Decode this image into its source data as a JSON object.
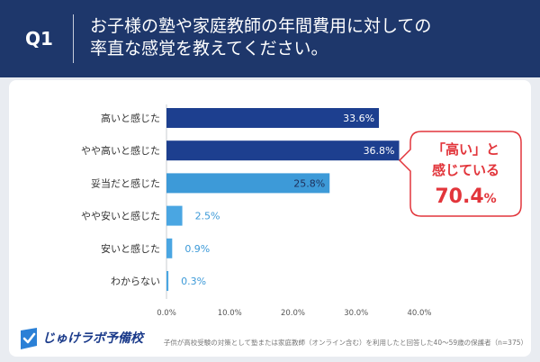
{
  "header": {
    "q_label": "Q1",
    "question_line1": "お子様の塾や家庭教師の年間費用に対しての",
    "question_line2": "率直な感覚を教えてください。"
  },
  "chart_data": {
    "type": "bar",
    "categories": [
      "高いと感じた",
      "やや高いと感じた",
      "妥当だと感じた",
      "やや安いと感じた",
      "安いと感じた",
      "わからない"
    ],
    "values": [
      33.6,
      36.8,
      25.8,
      2.5,
      0.9,
      0.3
    ],
    "value_labels": [
      "33.6%",
      "36.8%",
      "25.8%",
      "2.5%",
      "0.9%",
      "0.3%"
    ],
    "xlim": [
      0,
      40
    ],
    "xticks": [
      0,
      10,
      20,
      30,
      40
    ],
    "xtick_labels": [
      "0.0%",
      "10.0%",
      "20.0%",
      "30.0%",
      "40.0%"
    ],
    "bar_colors": [
      "#1d3f8f",
      "#1d3f8f",
      "#3d9ad8",
      "#4aa6e2",
      "#4aa6e2",
      "#4aa6e2"
    ],
    "label_colors": [
      "#ffffff",
      "#ffffff",
      "#1e2f5a",
      "#3d9ad8",
      "#3d9ad8",
      "#3d9ad8"
    ],
    "grid": false,
    "callout": {
      "line1": "「高い」と",
      "line2": "感じている",
      "value": "70.4",
      "unit": "%",
      "color": "#e2353b"
    }
  },
  "brand": {
    "name": "じゅけラボ予備校",
    "color": "#1a3a8a",
    "icon_color": "#2b80d6"
  },
  "footnote": "子供が高校受験の対策として塾または家庭教師（オンライン含む）を利用したと回答した40〜59歳の保護者（n=375）",
  "colors": {
    "header_bg": "#1e376b",
    "header_text": "#ffffff",
    "axis": "#c9ccd2",
    "tick_text": "#555555",
    "category_text": "#333333"
  }
}
